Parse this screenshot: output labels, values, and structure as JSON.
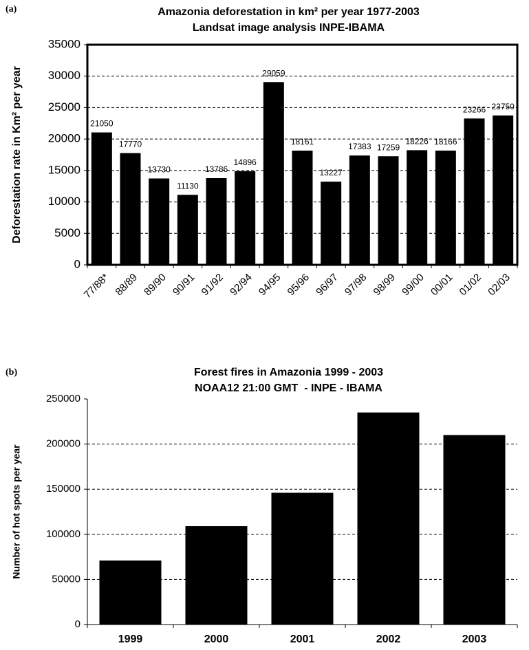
{
  "chart_data": [
    {
      "type": "bar",
      "panel_label": "(a)",
      "title": "Amazonia deforestation in km² per year 1977-2003",
      "subtitle": "Landsat image analysis INPE-IBAMA",
      "y_label": "Deforestation rate in Km² per year",
      "categories": [
        "77/88*",
        "88/89",
        "89/90",
        "90/91",
        "91/92",
        "92/94",
        "94/95",
        "95/96",
        "96/97",
        "97/98",
        "98/99",
        "99/00",
        "00/01",
        "01/02",
        "02/03"
      ],
      "values": [
        21050,
        17770,
        13730,
        11130,
        13786,
        14896,
        29059,
        18161,
        13227,
        17383,
        17259,
        18226,
        18166,
        23266,
        23750
      ],
      "show_values": true,
      "color": "#000000",
      "ylim": [
        0,
        35000
      ],
      "yticks": [
        0,
        5000,
        10000,
        15000,
        20000,
        25000,
        30000,
        35000
      ],
      "grid": true
    },
    {
      "type": "bar",
      "panel_label": "(b)",
      "title": "Forest fires in Amazonia 1999 - 2003",
      "subtitle": "NOAA12 21:00 GMT  - INPE - IBAMA",
      "y_label": "Number of hot spots per year",
      "categories": [
        "1999",
        "2000",
        "2001",
        "2002",
        "2003"
      ],
      "values": [
        71000,
        109000,
        146000,
        235000,
        210000
      ],
      "show_values": false,
      "color": "#000000",
      "ylim": [
        0,
        250000
      ],
      "yticks": [
        0,
        50000,
        100000,
        150000,
        200000,
        250000
      ],
      "grid": true
    }
  ]
}
